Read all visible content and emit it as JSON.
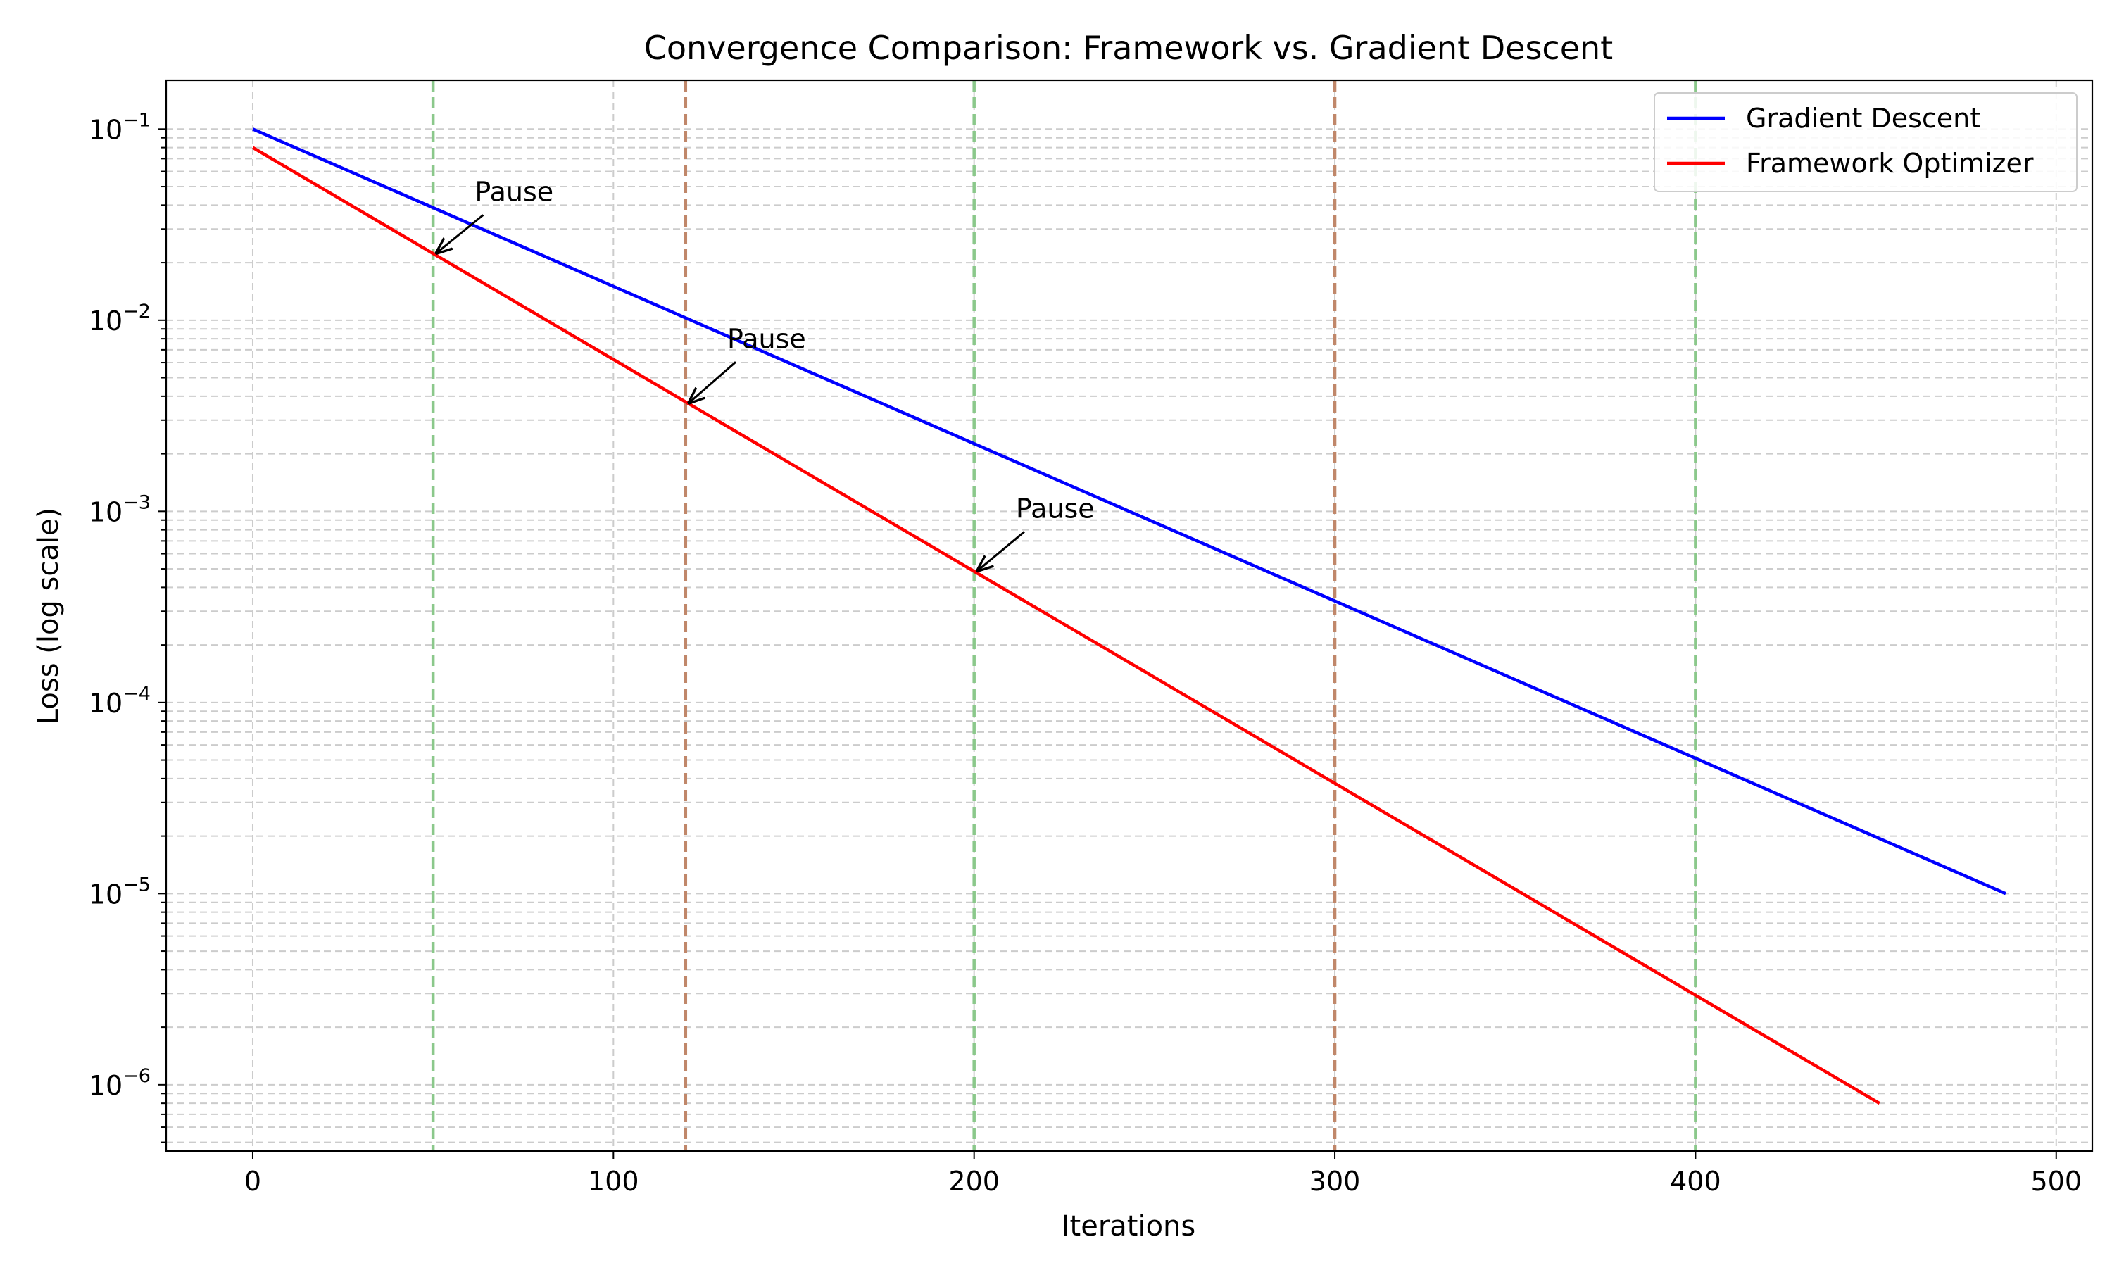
{
  "chart_data": {
    "type": "line",
    "title": "Convergence Comparison: Framework vs. Gradient Descent",
    "xlabel": "Iterations",
    "ylabel": "Loss (log scale)",
    "xlim": [
      -24,
      510
    ],
    "ylim": [
      4.5e-07,
      0.18
    ],
    "yscale": "log",
    "xticks": [
      0,
      100,
      200,
      300,
      400,
      500
    ],
    "xtick_labels": [
      "0",
      "100",
      "200",
      "300",
      "400",
      "500"
    ],
    "yticks": [
      1e-06,
      1e-05,
      0.0001,
      0.001,
      0.01,
      0.1
    ],
    "ytick_labels": [
      {
        "base": "10",
        "exp": "−6"
      },
      {
        "base": "10",
        "exp": "−5"
      },
      {
        "base": "10",
        "exp": "−4"
      },
      {
        "base": "10",
        "exp": "−3"
      },
      {
        "base": "10",
        "exp": "−2"
      },
      {
        "base": "10",
        "exp": "−1"
      }
    ],
    "grid": true,
    "legend_position": "top-right",
    "series": [
      {
        "name": "Gradient Descent",
        "color": "#0000ff",
        "points": [
          [
            0,
            0.1
          ],
          [
            486,
            1e-05
          ]
        ]
      },
      {
        "name": "Framework Optimizer",
        "color": "#ff0000",
        "points": [
          [
            0,
            0.08
          ],
          [
            451,
            8e-07
          ]
        ]
      }
    ],
    "vertical_lines": [
      {
        "x": 50,
        "color": "#8bc88b"
      },
      {
        "x": 120,
        "color": "#c0876a"
      },
      {
        "x": 200,
        "color": "#8bc88b"
      },
      {
        "x": 300,
        "color": "#c0876a"
      },
      {
        "x": 400,
        "color": "#8bc88b"
      }
    ],
    "annotations": [
      {
        "text": "Pause",
        "point": [
          51,
          0.0225
        ],
        "text_at": [
          60,
          0.04
        ]
      },
      {
        "text": "Pause",
        "point": [
          121,
          0.0037
        ],
        "text_at": [
          130,
          0.0068
        ]
      },
      {
        "text": "Pause",
        "point": [
          201,
          0.00049
        ],
        "text_at": [
          210,
          0.00088
        ]
      }
    ]
  }
}
